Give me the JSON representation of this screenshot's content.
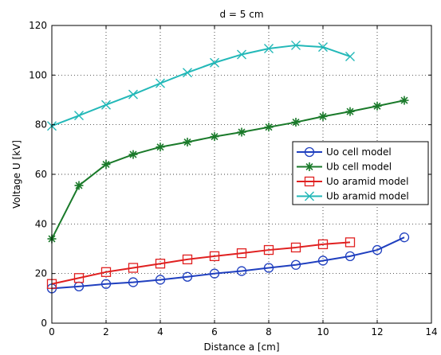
{
  "chart_data": {
    "type": "line",
    "title": "d = 5 cm",
    "xlabel": "Distance a [cm]",
    "ylabel": "Voltage U [kV]",
    "xlim": [
      0,
      14
    ],
    "ylim": [
      0,
      120
    ],
    "xticks": [
      0,
      2,
      4,
      6,
      8,
      10,
      12,
      14
    ],
    "yticks": [
      0,
      20,
      40,
      60,
      80,
      100,
      120
    ],
    "grid": true,
    "legend_position": "right",
    "series": [
      {
        "name": "Uo cell model",
        "color": "#1f3fbf",
        "marker": "circle",
        "x": [
          0,
          1,
          2,
          3,
          4,
          5,
          6,
          7,
          8,
          9,
          10,
          11,
          12,
          13
        ],
        "y": [
          14,
          14.8,
          15.8,
          16.5,
          17.5,
          18.7,
          20,
          21,
          22.3,
          23.5,
          25.2,
          27,
          29.5,
          34.6
        ]
      },
      {
        "name": "Ub cell model",
        "color": "#1a7a2a",
        "marker": "star",
        "x": [
          0,
          1,
          2,
          3,
          4,
          5,
          6,
          7,
          8,
          9,
          10,
          11,
          12,
          13
        ],
        "y": [
          34,
          55.5,
          64,
          68,
          71,
          73,
          75.2,
          77,
          79,
          81,
          83.3,
          85.3,
          87.5,
          89.8
        ]
      },
      {
        "name": "Uo aramid model",
        "color": "#e02020",
        "marker": "square",
        "x": [
          0,
          1,
          2,
          3,
          4,
          5,
          6,
          7,
          8,
          9,
          10,
          11
        ],
        "y": [
          15.8,
          18.2,
          20.6,
          22.3,
          24,
          25.7,
          27,
          28.2,
          29.5,
          30.5,
          31.8,
          32.6
        ]
      },
      {
        "name": "Ub aramid model",
        "color": "#22b8b8",
        "marker": "x",
        "x": [
          0,
          1,
          2,
          3,
          4,
          5,
          6,
          7,
          8,
          9,
          10,
          11
        ],
        "y": [
          79.5,
          83.7,
          88,
          92.2,
          96.7,
          101,
          105,
          108.3,
          110.7,
          112,
          111.3,
          107.5
        ]
      }
    ]
  }
}
